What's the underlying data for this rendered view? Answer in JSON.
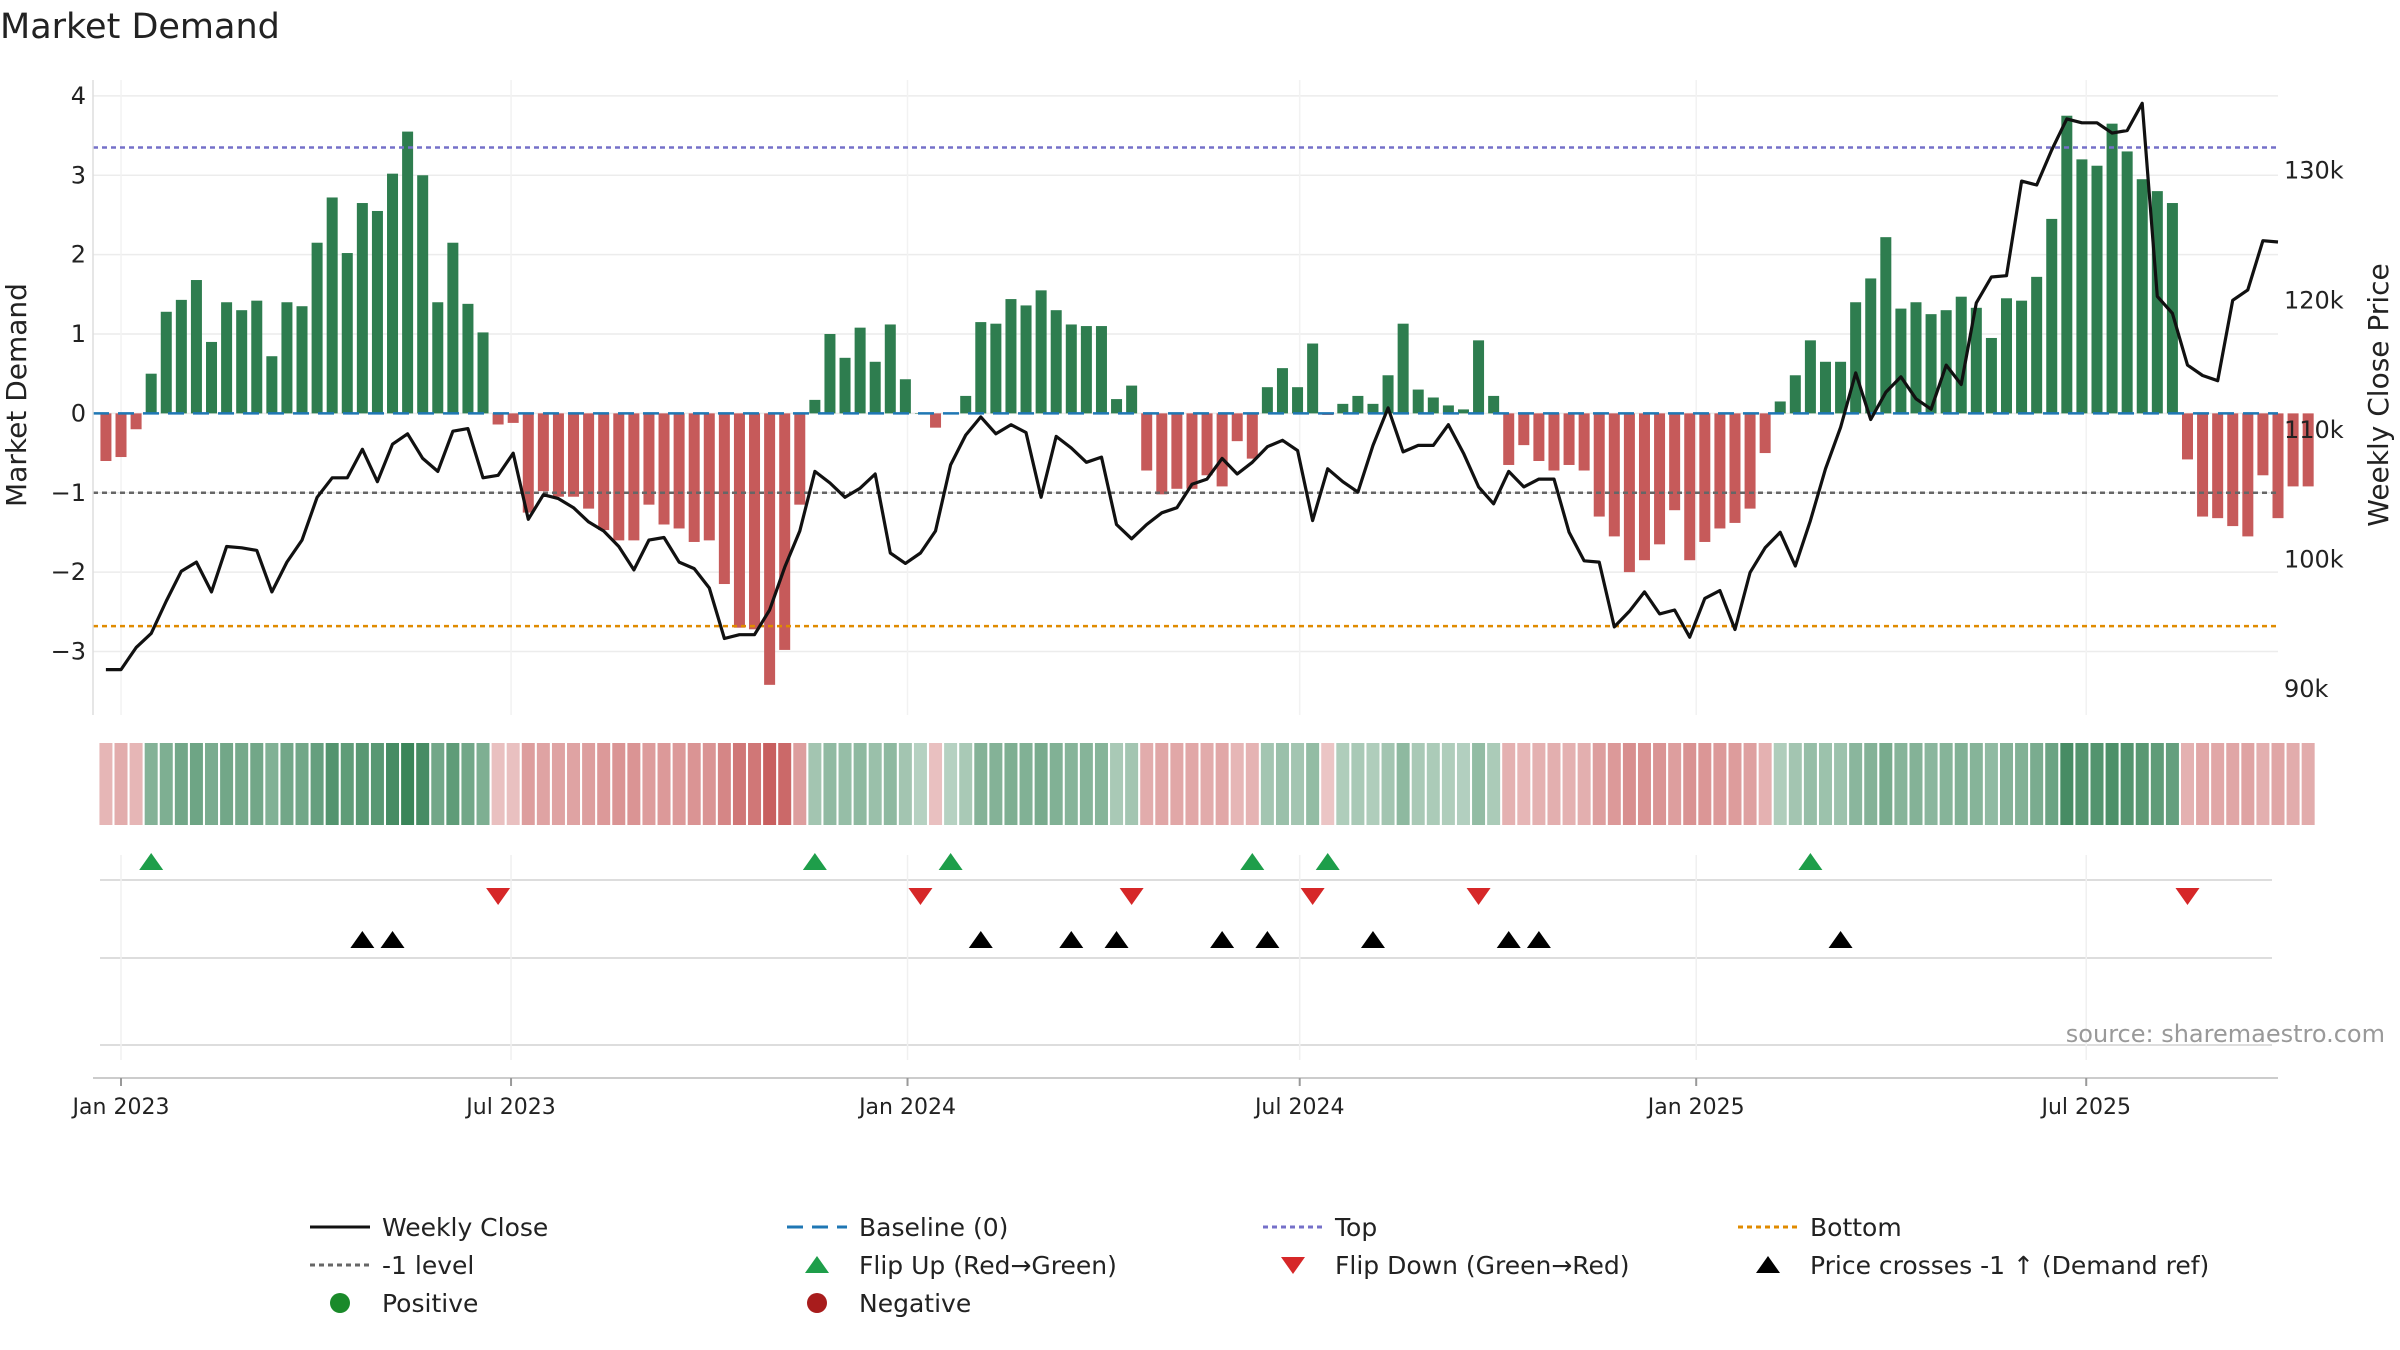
{
  "chart_data": {
    "type": "bar",
    "title": "Market Demand",
    "ylabel": "Market Demand",
    "y2label": "Weekly Close Price",
    "ylim": [
      -3.8,
      4.2
    ],
    "y2lim": [
      88000,
      137000
    ],
    "yticks": [
      4,
      3,
      2,
      1,
      0,
      -1,
      -2,
      -3
    ],
    "y2ticks": [
      {
        "value": 130000,
        "label": "130k"
      },
      {
        "value": 120000,
        "label": "120k"
      },
      {
        "value": 110000,
        "label": "110k"
      },
      {
        "value": 100000,
        "label": "100k"
      },
      {
        "value": 90000,
        "label": "90k"
      }
    ],
    "x_start": "2022-12-19",
    "x_end": "2025-09-28",
    "week0": "2022-12-25",
    "x_ticks": [
      {
        "label": "Jan 2023",
        "date": "2023-01-01"
      },
      {
        "label": "Jul 2023",
        "date": "2023-07-01"
      },
      {
        "label": "Jan 2024",
        "date": "2024-01-01"
      },
      {
        "label": "Jul 2024",
        "date": "2024-07-01"
      },
      {
        "label": "Jan 2025",
        "date": "2025-01-01"
      },
      {
        "label": "Jul 2025",
        "date": "2025-07-01"
      }
    ],
    "reference_lines": {
      "top": 3.35,
      "bottom": -2.68,
      "minus_one": -1,
      "baseline": 0
    },
    "demand": [
      -0.6,
      -0.55,
      -0.2,
      0.5,
      1.28,
      1.43,
      1.68,
      0.9,
      1.4,
      1.3,
      1.42,
      0.72,
      1.4,
      1.35,
      2.15,
      2.72,
      2.02,
      2.65,
      2.55,
      3.02,
      3.55,
      3.0,
      1.4,
      2.15,
      1.38,
      1.02,
      -0.14,
      -0.12,
      -1.25,
      -0.98,
      -1.05,
      -1.05,
      -1.2,
      -1.47,
      -1.6,
      -1.6,
      -1.15,
      -1.4,
      -1.45,
      -1.62,
      -1.6,
      -2.15,
      -2.7,
      -2.72,
      -3.42,
      -2.98,
      -1.15,
      0.17,
      1.0,
      0.7,
      1.08,
      0.65,
      1.12,
      0.43,
      0.0,
      -0.18,
      0.0,
      0.22,
      1.15,
      1.13,
      1.44,
      1.36,
      1.55,
      1.3,
      1.12,
      1.1,
      1.1,
      0.18,
      0.35,
      -0.72,
      -1.02,
      -0.95,
      -0.95,
      -0.78,
      -0.92,
      -0.35,
      -0.57,
      0.33,
      0.57,
      0.33,
      0.88,
      -0.02,
      0.12,
      0.22,
      0.12,
      0.48,
      1.13,
      0.3,
      0.2,
      0.1,
      0.05,
      0.92,
      0.22,
      -0.65,
      -0.4,
      -0.6,
      -0.72,
      -0.65,
      -0.72,
      -1.3,
      -1.55,
      -2.0,
      -1.85,
      -1.65,
      -1.22,
      -1.85,
      -1.62,
      -1.45,
      -1.38,
      -1.2,
      -0.5,
      0.15,
      0.48,
      0.92,
      0.65,
      0.65,
      1.4,
      1.7,
      2.22,
      1.32,
      1.4,
      1.25,
      1.3,
      1.47,
      1.33,
      0.95,
      1.45,
      1.42,
      1.72,
      2.45,
      3.75,
      3.2,
      3.12,
      3.65,
      3.3,
      2.95,
      2.8,
      2.65,
      -0.58,
      -1.3,
      -1.32,
      -1.42,
      -1.55,
      -0.78,
      -1.32,
      -0.92,
      -0.92
    ],
    "price": [
      91500,
      91500,
      93200,
      94300,
      96800,
      99100,
      99800,
      97500,
      101000,
      100900,
      100700,
      97500,
      99800,
      101500,
      104800,
      106300,
      106300,
      108500,
      106000,
      108900,
      109700,
      107800,
      106800,
      109900,
      110100,
      106300,
      106500,
      108200,
      103100,
      105000,
      104700,
      104000,
      102900,
      102200,
      101000,
      99200,
      101500,
      101700,
      99800,
      99300,
      97800,
      93900,
      94200,
      94200,
      96100,
      99400,
      102200,
      106800,
      105900,
      104800,
      105500,
      106600,
      100500,
      99700,
      100500,
      102200,
      107300,
      109600,
      111000,
      109700,
      110400,
      109800,
      104800,
      109500,
      108600,
      107500,
      107900,
      102700,
      101600,
      102700,
      103600,
      104000,
      105800,
      106200,
      107800,
      106600,
      107500,
      108700,
      109200,
      108400,
      103000,
      107000,
      106000,
      105200,
      108800,
      111700,
      108300,
      108800,
      108800,
      110400,
      108200,
      105600,
      104300,
      106800,
      105600,
      106200,
      106200,
      102100,
      99900,
      99800,
      94800,
      96000,
      97500,
      95800,
      96100,
      94000,
      97000,
      97600,
      94600,
      99000,
      100900,
      102100,
      99500,
      103000,
      107000,
      110200,
      114400,
      110800,
      112900,
      114100,
      112400,
      111600,
      115000,
      113500,
      119800,
      121800,
      121900,
      129200,
      128900,
      131600,
      134000,
      133700,
      133700,
      132900,
      133100,
      135200,
      120300,
      119000,
      115000,
      114200,
      113800,
      120000,
      120800,
      124600,
      124500
    ],
    "intensity": [
      0.55,
      0.65,
      0.55,
      0.8,
      0.85,
      0.95,
      0.98,
      0.88,
      0.95,
      0.92,
      0.95,
      0.82,
      0.95,
      0.95,
      1.05,
      1.2,
      1.1,
      1.15,
      1.15,
      1.3,
      1.4,
      1.3,
      0.95,
      1.1,
      0.95,
      0.85,
      0.45,
      0.45,
      0.8,
      0.75,
      0.75,
      0.75,
      0.8,
      0.85,
      0.9,
      0.9,
      0.82,
      0.85,
      0.85,
      0.9,
      0.9,
      1.05,
      1.2,
      1.2,
      1.45,
      1.35,
      0.8,
      0.55,
      0.7,
      0.65,
      0.72,
      0.62,
      0.72,
      0.55,
      0.4,
      0.45,
      0.4,
      0.5,
      0.8,
      0.8,
      0.85,
      0.82,
      0.9,
      0.82,
      0.78,
      0.78,
      0.78,
      0.5,
      0.55,
      0.65,
      0.72,
      0.7,
      0.7,
      0.66,
      0.7,
      0.55,
      0.58,
      0.55,
      0.62,
      0.55,
      0.68,
      0.4,
      0.45,
      0.5,
      0.45,
      0.55,
      0.72,
      0.5,
      0.48,
      0.45,
      0.42,
      0.68,
      0.48,
      0.6,
      0.55,
      0.6,
      0.62,
      0.6,
      0.62,
      0.8,
      0.85,
      0.95,
      0.92,
      0.9,
      0.8,
      0.92,
      0.88,
      0.85,
      0.82,
      0.78,
      0.6,
      0.45,
      0.55,
      0.65,
      0.6,
      0.6,
      0.75,
      0.8,
      0.9,
      0.78,
      0.8,
      0.75,
      0.78,
      0.82,
      0.78,
      0.7,
      0.8,
      0.82,
      0.88,
      1.0,
      1.3,
      1.2,
      1.2,
      1.25,
      1.2,
      1.15,
      1.1,
      1.05,
      0.6,
      0.7,
      0.7,
      0.72,
      0.75,
      0.62,
      0.72,
      0.65,
      0.65
    ],
    "flip_up_weeks": [
      3,
      47,
      56,
      76,
      81,
      113
    ],
    "flip_down_weeks": [
      26,
      54,
      68,
      80,
      91,
      138
    ],
    "price_cross_weeks": [
      17,
      19,
      58,
      64,
      67,
      74,
      77,
      84,
      93,
      95,
      115
    ],
    "colors": {
      "positive_bar": "#2e7d4f",
      "negative_bar": "#c65a5a",
      "price_line": "#111111",
      "baseline": "#1f77b4",
      "top": "#7570c9",
      "bottom": "#e08b00",
      "minus_one": "#666666",
      "flip_up": "#1e9e4a",
      "flip_down": "#d62728",
      "price_cross": "#000000",
      "positive_dot": "#1a8a2a",
      "negative_dot": "#a81c1c"
    }
  },
  "source_note": "source: sharemaestro.com",
  "legend": [
    {
      "label": "Weekly Close",
      "kind": "line-solid",
      "color": "#111111"
    },
    {
      "label": "Baseline (0)",
      "kind": "line-dash",
      "color": "#1f77b4"
    },
    {
      "label": "Top",
      "kind": "line-dot",
      "color": "#7570c9"
    },
    {
      "label": "Bottom",
      "kind": "line-dot",
      "color": "#e08b00"
    },
    {
      "label": "-1 level",
      "kind": "line-dot",
      "color": "#666666"
    },
    {
      "label": "Flip Up (Red→Green)",
      "kind": "tri-up",
      "color": "#1e9e4a"
    },
    {
      "label": "Flip Down (Green→Red)",
      "kind": "tri-down",
      "color": "#d62728"
    },
    {
      "label": "Price crosses -1 ↑ (Demand ref)",
      "kind": "tri-up",
      "color": "#000000"
    },
    {
      "label": "Positive",
      "kind": "dot",
      "color": "#1a8a2a"
    },
    {
      "label": "Negative",
      "kind": "dot",
      "color": "#a81c1c"
    }
  ]
}
